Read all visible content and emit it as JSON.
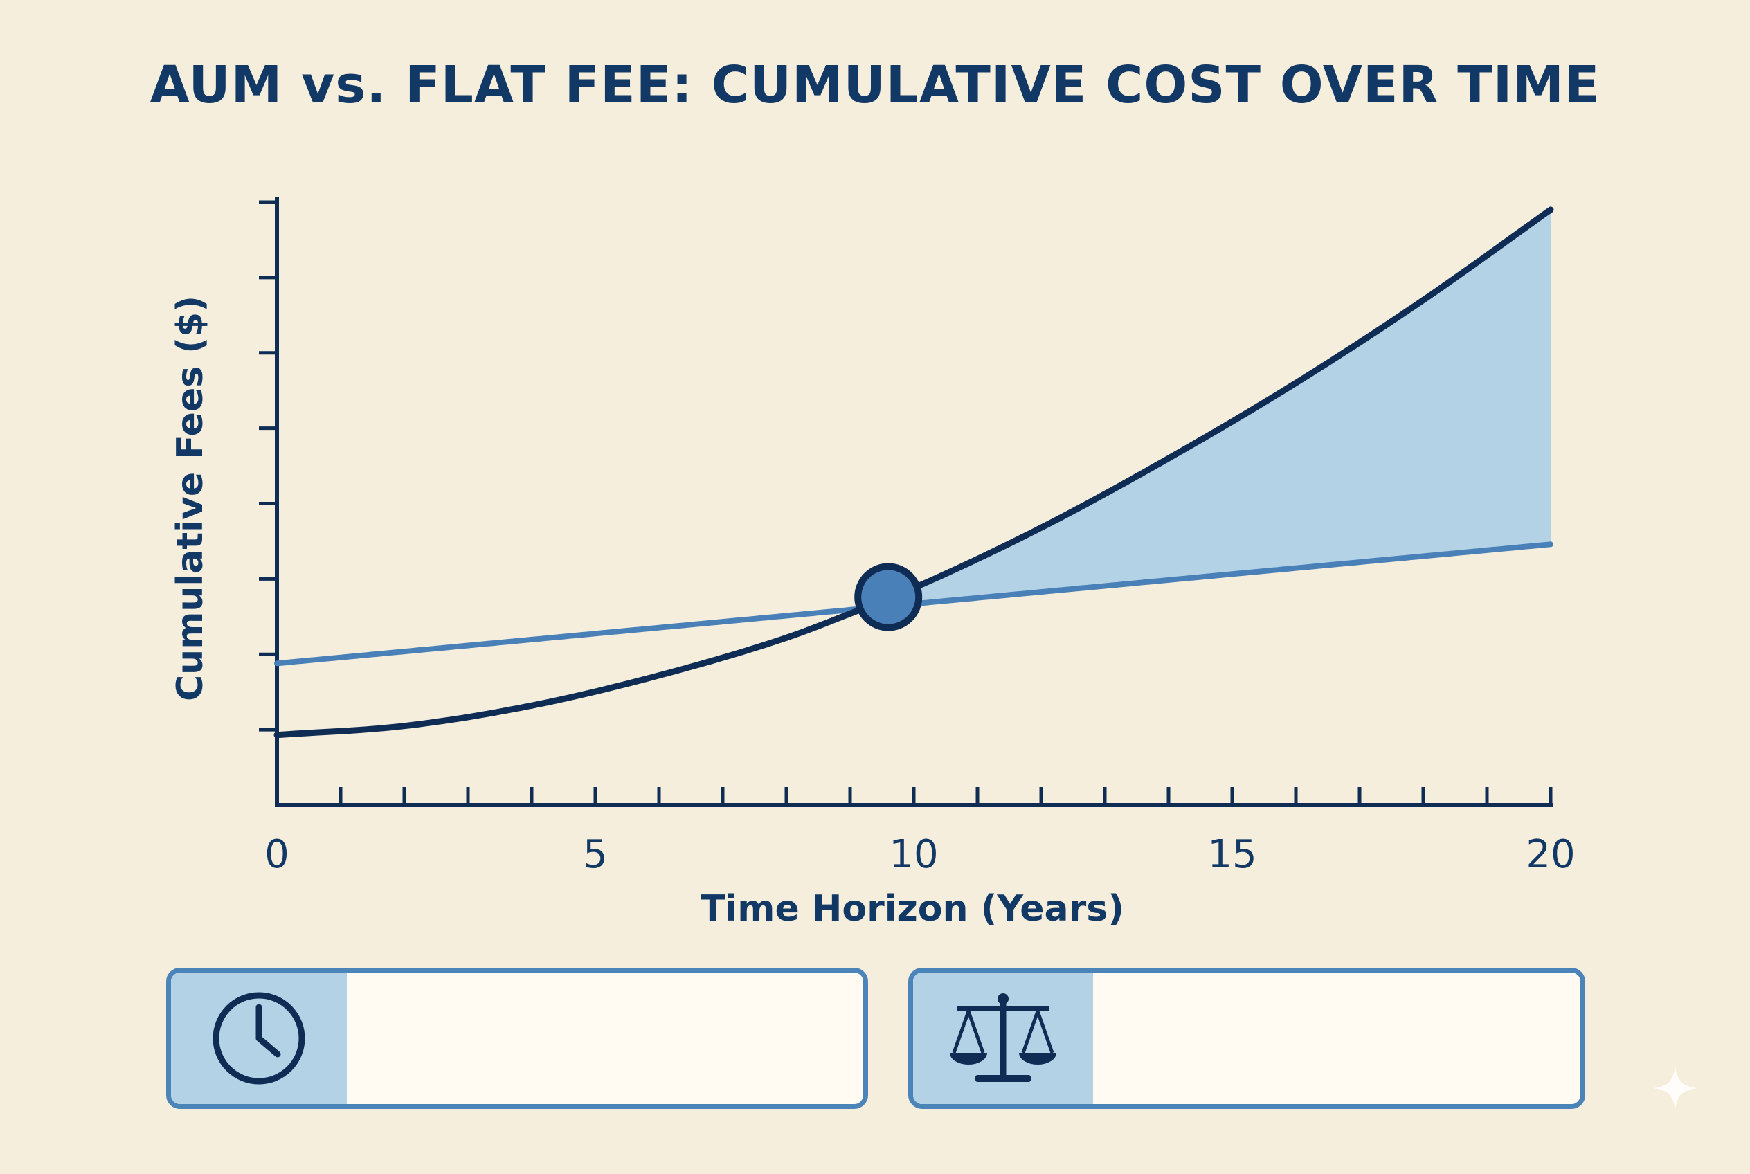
{
  "title": "AUM vs. FLAT FEE: CUMULATIVE COST OVER TIME",
  "chart_data": {
    "type": "line",
    "title": "AUM vs. FLAT FEE: CUMULATIVE COST OVER TIME",
    "xlabel": "Time Horizon (Years)",
    "ylabel": "Cumulative Fees ($)",
    "xlim": [
      0,
      20
    ],
    "ylim": [
      0,
      8
    ],
    "x_ticks": [
      0,
      5,
      10,
      15,
      20
    ],
    "x_minor_tick_step": 1,
    "y_tick_count": 8,
    "y_tick_labels_shown": false,
    "grid": false,
    "legend": "none",
    "series": [
      {
        "x": [
          0,
          2,
          4,
          6,
          8,
          9,
          10,
          12,
          14,
          16,
          18,
          20
        ],
        "values": [
          0.93,
          1.05,
          1.32,
          1.72,
          2.22,
          2.54,
          2.88,
          3.68,
          4.6,
          5.6,
          6.7,
          7.9
        ],
        "color": "#0f2c55"
      },
      {
        "x": [
          0,
          20
        ],
        "values": [
          1.88,
          3.46
        ],
        "color": "#4a80b8"
      }
    ],
    "crossover": {
      "x": 9.6,
      "y": 2.76
    },
    "shaded_region": {
      "from_x": 9.6,
      "to_x": 20,
      "color": "#b3d2e6"
    }
  },
  "cards": [
    {
      "icon": "clock-icon",
      "text": ""
    },
    {
      "icon": "scale-icon",
      "text": ""
    }
  ],
  "colors": {
    "background": "#f6eedc",
    "text": "#123966",
    "axis": "#0f2c55",
    "card_border": "#4a84b8",
    "card_icon_bg": "#b3d2e6"
  }
}
